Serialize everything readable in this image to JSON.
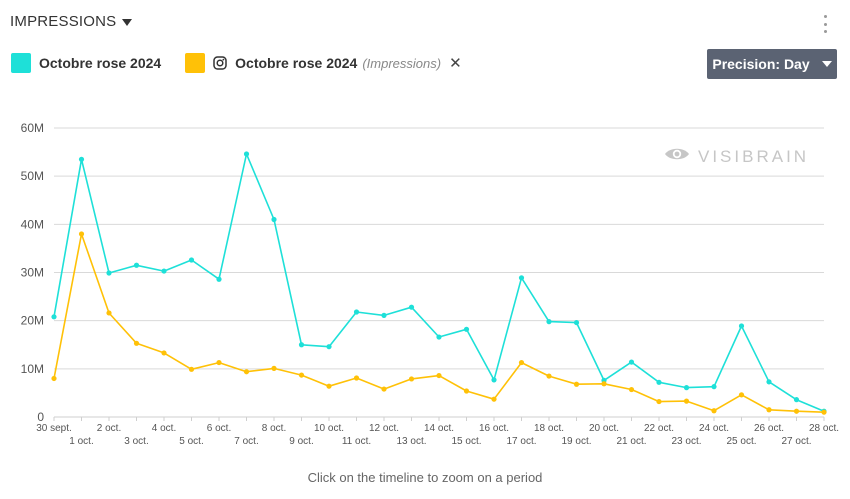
{
  "header": {
    "title": "IMPRESSIONS"
  },
  "legend": [
    {
      "label": "Octobre rose 2024",
      "color": "#1ee0d8",
      "has_icon": false
    },
    {
      "label": "Octobre rose 2024",
      "sub": "(Impressions)",
      "color": "#ffc107",
      "icon": "instagram-icon"
    }
  ],
  "precision": {
    "label": "Precision: Day"
  },
  "watermark": {
    "text": "VISIBRAIN"
  },
  "footer": {
    "hint": "Click on the timeline to zoom on a period"
  },
  "chart_data": {
    "type": "line",
    "x": [
      "30 sept.",
      "1 oct.",
      "2 oct.",
      "3 oct.",
      "4 oct.",
      "5 oct.",
      "6 oct.",
      "7 oct.",
      "8 oct.",
      "9 oct.",
      "10 oct.",
      "11 oct.",
      "12 oct.",
      "13 oct.",
      "14 oct.",
      "15 oct.",
      "16 oct.",
      "17 oct.",
      "18 oct.",
      "19 oct.",
      "20 oct.",
      "21 oct.",
      "22 oct.",
      "23 oct.",
      "24 oct.",
      "25 oct.",
      "26 oct.",
      "27 oct.",
      "28 oct."
    ],
    "yticks": [
      "0",
      "10M",
      "20M",
      "30M",
      "40M",
      "50M",
      "60M"
    ],
    "ylim": [
      0,
      60
    ],
    "grid": true,
    "series": [
      {
        "name": "Octobre rose 2024",
        "color": "#1ee0d8",
        "values": [
          20.8,
          53.5,
          29.9,
          31.5,
          30.3,
          32.6,
          28.6,
          54.6,
          41.0,
          15.0,
          14.6,
          21.8,
          21.1,
          22.8,
          16.6,
          18.2,
          7.7,
          28.9,
          19.8,
          19.6,
          7.6,
          11.4,
          7.2,
          6.1,
          6.3,
          18.9,
          7.3,
          3.6,
          1.2
        ]
      },
      {
        "name": "Octobre rose 2024 (Impressions)",
        "color": "#ffc107",
        "values": [
          8.0,
          38.0,
          21.6,
          15.3,
          13.3,
          9.9,
          11.3,
          9.4,
          10.1,
          8.7,
          6.4,
          8.1,
          5.8,
          7.9,
          8.6,
          5.4,
          3.7,
          11.3,
          8.5,
          6.8,
          6.9,
          5.7,
          3.2,
          3.3,
          1.3,
          4.6,
          1.5,
          1.2,
          1.0
        ]
      }
    ]
  }
}
